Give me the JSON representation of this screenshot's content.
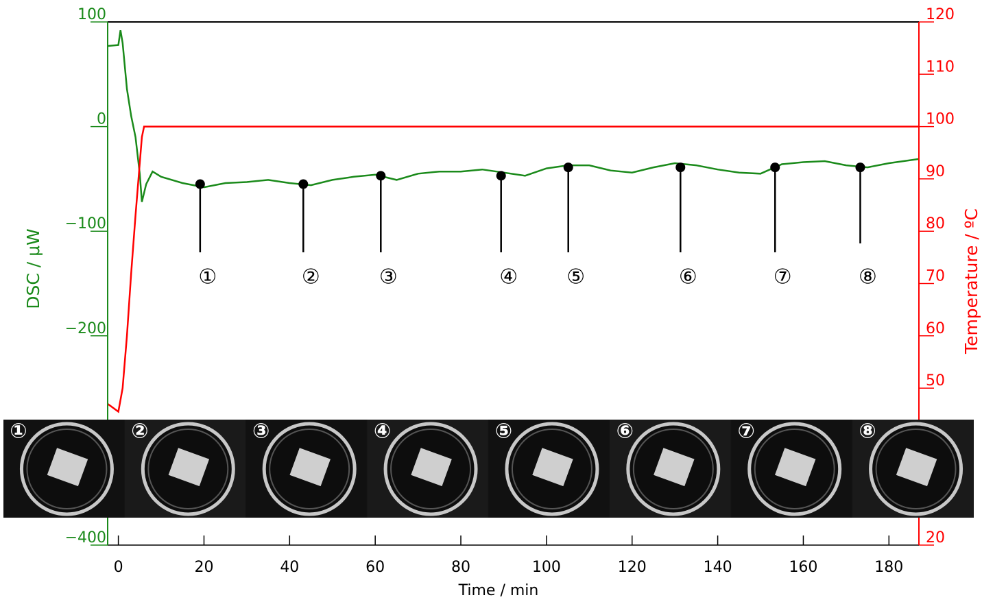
{
  "chart_data": {
    "type": "line",
    "xlabel": "Time / min",
    "ylabel": "DSC / μW",
    "y2label": "Temperature / ºC",
    "xlim": [
      -2.5,
      187
    ],
    "xticks": [
      0,
      20,
      40,
      60,
      80,
      100,
      120,
      140,
      160,
      180
    ],
    "ylim": [
      -400,
      100
    ],
    "yticks": [
      100,
      0,
      {
        "value": -100,
        "label": "−100"
      },
      {
        "value": -200,
        "label": "−200"
      },
      {
        "value": -400,
        "label": "−400"
      }
    ],
    "y2lim": [
      20,
      120
    ],
    "y2ticks": [
      120,
      110,
      100,
      90,
      80,
      70,
      60,
      50,
      20
    ],
    "series": [
      {
        "color": "#1a8a1a",
        "axis": "y",
        "x": [
          -2.5,
          0,
          0.5,
          1,
          2,
          3,
          4,
          5,
          5.5,
          6.5,
          8,
          10,
          15,
          20,
          25,
          30,
          35,
          40,
          45,
          50,
          55,
          60,
          65,
          70,
          75,
          80,
          85,
          90,
          95,
          100,
          105,
          110,
          115,
          120,
          125,
          130,
          135,
          140,
          145,
          150,
          155,
          160,
          165,
          170,
          175,
          180,
          187
        ],
        "values": [
          77,
          78,
          92,
          80,
          36,
          10,
          -10,
          -45,
          -72,
          -55,
          -43,
          -48,
          -54,
          -58,
          -54,
          -53,
          -51,
          -54,
          -56,
          -51,
          -48,
          -46,
          -51,
          -45,
          -43,
          -43,
          -41,
          -44,
          -47,
          -40,
          -37,
          -37,
          -42,
          -44,
          -39,
          -35,
          -37,
          -41,
          -44,
          -45,
          -36,
          -34,
          -33,
          -37,
          -39,
          -35,
          -31
        ]
      },
      {
        "color": "#ff0000",
        "axis": "y2",
        "x": [
          -2.5,
          0,
          1,
          2,
          3,
          4,
          5,
          5.5,
          6,
          8,
          187
        ],
        "values": [
          47,
          45.5,
          50,
          60,
          72,
          83,
          93,
          98,
          100,
          100,
          100
        ]
      }
    ],
    "markers": {
      "x": [
        19.1,
        43.2,
        61.3,
        89.4,
        105.1,
        131.3,
        153.4,
        173.3
      ],
      "values": [
        -55,
        -55,
        -47,
        -47,
        -39,
        -39,
        -39,
        -39
      ],
      "labels": [
        "①",
        "②",
        "③",
        "④",
        "⑤",
        "⑥",
        "⑦",
        "⑧"
      ]
    }
  }
}
